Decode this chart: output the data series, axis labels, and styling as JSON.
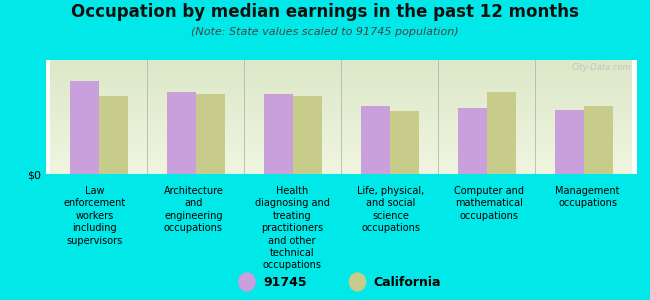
{
  "title": "Occupation by median earnings in the past 12 months",
  "subtitle": "(Note: State values scaled to 91745 population)",
  "background_color": "#00e8e8",
  "plot_bg_top": "#dce8c8",
  "plot_bg_bottom": "#f0f5e0",
  "categories": [
    "Law\nenforcement\nworkers\nincluding\nsupervisors",
    "Architecture\nand\nengineering\noccupations",
    "Health\ndiagnosing and\ntreating\npractitioners\nand other\ntechnical\noccupations",
    "Life, physical,\nand social\nscience\noccupations",
    "Computer and\nmathematical\noccupations",
    "Management\noccupations"
  ],
  "values_91745": [
    0.82,
    0.72,
    0.7,
    0.6,
    0.58,
    0.56
  ],
  "values_california": [
    0.68,
    0.7,
    0.68,
    0.55,
    0.72,
    0.6
  ],
  "color_91745": "#c9a0dc",
  "color_california": "#c8cc8a",
  "ylabel": "$0",
  "legend_labels": [
    "91745",
    "California"
  ],
  "title_fontsize": 12,
  "subtitle_fontsize": 8,
  "tick_fontsize": 7,
  "legend_fontsize": 9,
  "bar_width": 0.3,
  "watermark": "City-Data.com"
}
